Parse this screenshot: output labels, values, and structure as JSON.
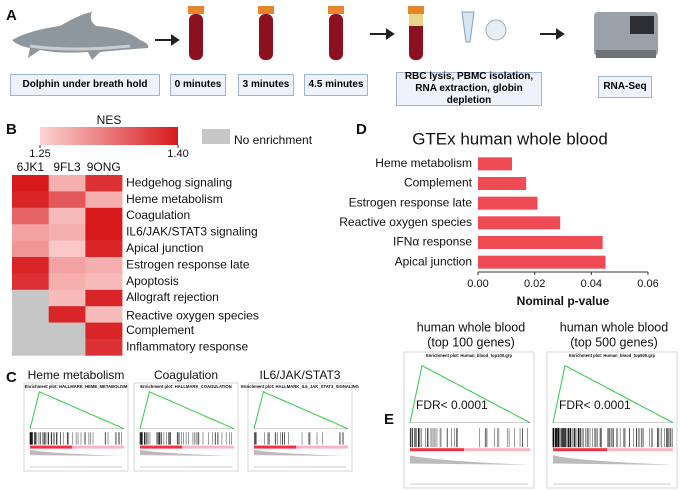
{
  "panel_labels": [
    "A",
    "B",
    "C",
    "D",
    "E"
  ],
  "workflow": {
    "steps": [
      "Dolphin under breath hold",
      "0 minutes",
      "3 minutes",
      "4.5 minutes",
      "RBC lysis, PBMC isolation, RNA extraction, globin depletion",
      "RNA-Seq"
    ]
  },
  "heatmap": {
    "legend_title": "NES",
    "legend_ticks": [
      1.25,
      {
        "value": 1.4,
        "label": "1.40"
      }
    ],
    "null_label": "No enrichment",
    "color_low": "#fcd4d4",
    "color_high": "#d7191c",
    "null_color": "#c6c6c6",
    "columns": [
      "6JK1",
      "9FL3",
      "9ONG"
    ],
    "rows": [
      "Hedgehog signaling",
      "Heme metabolism",
      "Coagulation",
      "IL6/JAK/STAT3 signaling",
      "Apical junction",
      "Estrogen response late",
      "Apoptosis",
      "Allograft rejection",
      "Reactive oxygen species",
      "Complement",
      "Inflammatory response"
    ],
    "values": [
      [
        1.4,
        1.28,
        1.38
      ],
      [
        1.39,
        1.35,
        1.28
      ],
      [
        1.34,
        1.27,
        1.4
      ],
      [
        1.29,
        1.28,
        1.4
      ],
      [
        1.3,
        1.26,
        1.39
      ],
      [
        1.39,
        1.29,
        1.28
      ],
      [
        1.38,
        1.28,
        1.27
      ],
      [
        null,
        1.27,
        1.39
      ],
      [
        null,
        1.39,
        1.27
      ],
      [
        null,
        null,
        1.39
      ],
      [
        null,
        null,
        1.38
      ]
    ]
  },
  "gsea_c": {
    "plots": [
      {
        "title": "Heme metabolism",
        "subtitle": "Enrichment plot: HALLMARK_HEME_METABOLISM"
      },
      {
        "title": "Coagulation",
        "subtitle": "Enrichment plot: HALLMARK_COAGULATION"
      },
      {
        "title": "IL6/JAK/STAT3",
        "subtitle": "Enrichment plot: HALLMARK_IL6_JAK_STAT3_SIGNALING"
      }
    ]
  },
  "chart_data": {
    "type": "bar",
    "orientation": "horizontal",
    "title": "GTEx human whole blood",
    "x_label": "Nominal p-value",
    "categories": [
      "Heme metabolism",
      "Complement",
      "Estrogen response late",
      "Reactive oxygen species",
      "IFNα response",
      "Apical junction"
    ],
    "values": [
      0.012,
      0.017,
      0.021,
      0.029,
      0.044,
      0.045
    ],
    "color": "#ef4b55",
    "xlim": [
      0,
      0.06
    ],
    "xticks": [
      {
        "value": 0,
        "label": "0.00"
      },
      0.02,
      0.04,
      0.06
    ]
  },
  "gsea_e": {
    "plots": [
      {
        "title": [
          "human whole blood",
          "(top 100 genes)"
        ],
        "subtitle": "Enrichment plot: Human_blood_top100.grp",
        "annotation": "FDR< 0.0001"
      },
      {
        "title": [
          "human whole blood",
          "(top 500 genes)"
        ],
        "subtitle": "Enrichment plot: Human_blood_top500.grp",
        "annotation": "FDR< 0.0001"
      }
    ]
  }
}
